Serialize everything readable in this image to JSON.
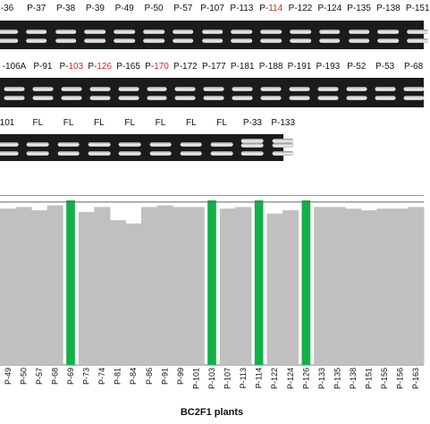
{
  "gel_rows": [
    {
      "lanes": [
        {
          "label": "-36"
        },
        {
          "label": "P-37"
        },
        {
          "label": "P-38"
        },
        {
          "label": "P-39"
        },
        {
          "label": "P-49"
        },
        {
          "label": "P-50"
        },
        {
          "label": "P-57"
        },
        {
          "label": "P-107"
        },
        {
          "label": "P-113"
        },
        {
          "label": "P-",
          "hl": "114"
        },
        {
          "label": "P-122"
        },
        {
          "label": "P-124"
        },
        {
          "label": "P-135"
        },
        {
          "label": "P-138"
        },
        {
          "label": "P-151"
        }
      ]
    },
    {
      "lanes": [
        {
          "label": "-106A"
        },
        {
          "label": "P-91"
        },
        {
          "label": "P-",
          "hl": "103"
        },
        {
          "label": "P-",
          "hl": "126"
        },
        {
          "label": "P-165"
        },
        {
          "label": "P-",
          "hl": "170"
        },
        {
          "label": "P-172"
        },
        {
          "label": "P-177"
        },
        {
          "label": "P-181"
        },
        {
          "label": "P-188"
        },
        {
          "label": "P-191"
        },
        {
          "label": "P-193"
        },
        {
          "label": "P-52"
        },
        {
          "label": "P-53"
        },
        {
          "label": "P-68"
        }
      ]
    },
    {
      "lanes": [
        {
          "label": "101"
        },
        {
          "label": "FL"
        },
        {
          "label": "FL"
        },
        {
          "label": "FL"
        },
        {
          "label": "FL"
        },
        {
          "label": "FL"
        },
        {
          "label": "FL"
        },
        {
          "label": "FL"
        },
        {
          "label": "P-33"
        },
        {
          "label": "P-133"
        }
      ]
    }
  ],
  "colors": {
    "bar": "#c0c0c0",
    "highlight": "#13b04a",
    "label_highlight": "#c0312b",
    "gel": "#1b1b1b"
  },
  "chart_data": {
    "type": "bar",
    "title": "",
    "xlabel": "BC2F1 plants",
    "ylabel": "",
    "categories": [
      "P-49",
      "P-50",
      "P-57",
      "P-68",
      "P-69",
      "P-73",
      "P-74",
      "P-81",
      "P-84",
      "P-86",
      "P-91",
      "P-99",
      "P-101",
      "P-103",
      "P-107",
      "P-113",
      "P-114",
      "P-122",
      "P-124",
      "P-126",
      "P-133",
      "P-135",
      "P-138",
      "P-151",
      "P-155",
      "P-156",
      "P-163"
    ],
    "values": [
      95,
      96,
      94,
      97,
      100,
      93,
      96,
      88,
      86,
      96,
      97,
      96,
      96,
      100,
      95,
      96,
      100,
      92,
      94,
      100,
      96,
      96,
      95,
      94,
      95,
      95,
      96
    ],
    "highlighted": [
      "P-69",
      "P-103",
      "P-114",
      "P-126"
    ],
    "reference_lines": [
      99,
      103
    ],
    "ylim": [
      0,
      106
    ]
  }
}
